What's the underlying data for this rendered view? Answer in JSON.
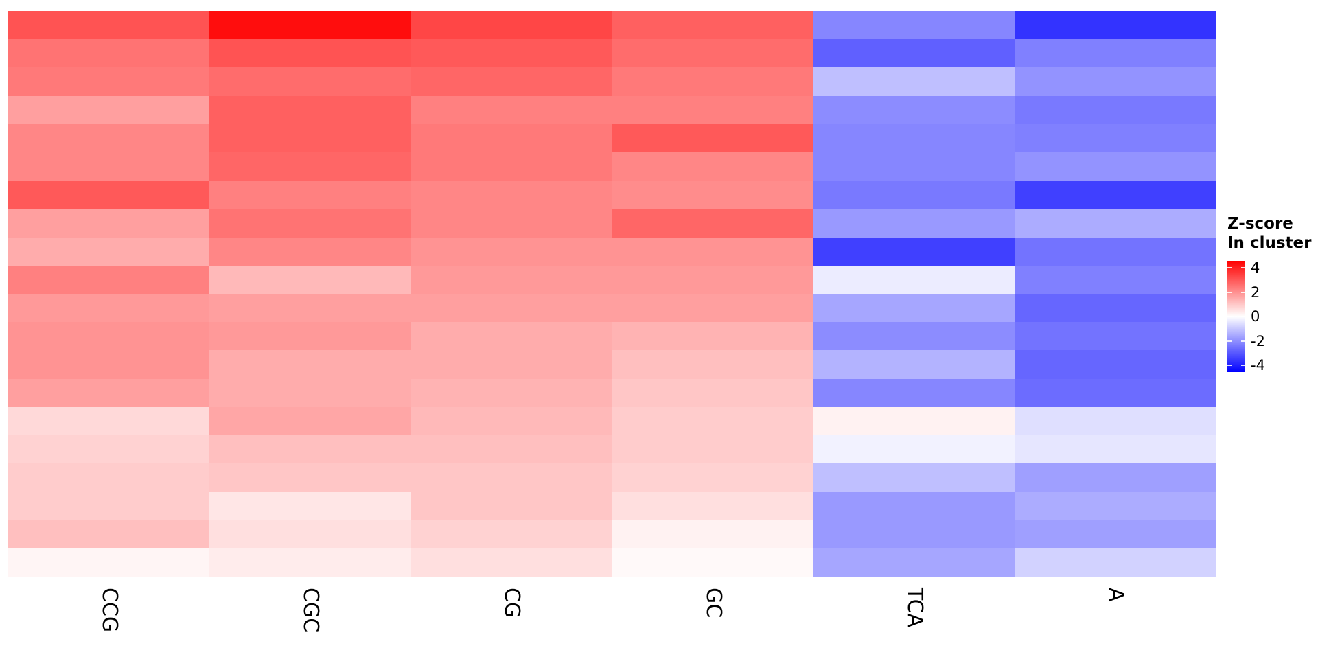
{
  "chart_data": {
    "type": "heatmap",
    "title": "",
    "columns": [
      "CCG",
      "CGC",
      "CG",
      "GC",
      "TCA",
      "A"
    ],
    "n_rows": 20,
    "zlim": [
      -4,
      4
    ],
    "colormap": {
      "negative": "#0000FF",
      "zero": "#FFFFFF",
      "positive": "#FF0000"
    },
    "values": [
      [
        2.7,
        3.8,
        2.9,
        2.5,
        -1.9,
        -3.2
      ],
      [
        2.2,
        2.7,
        2.6,
        2.3,
        -2.5,
        -2.0
      ],
      [
        2.1,
        2.3,
        2.4,
        2.1,
        -1.0,
        -1.7
      ],
      [
        1.5,
        2.5,
        2.0,
        2.0,
        -1.8,
        -2.1
      ],
      [
        1.9,
        2.5,
        2.1,
        2.6,
        -1.9,
        -2.0
      ],
      [
        1.9,
        2.4,
        2.1,
        1.9,
        -1.9,
        -1.7
      ],
      [
        2.6,
        2.0,
        1.9,
        1.8,
        -2.1,
        -3.0
      ],
      [
        1.5,
        2.2,
        1.9,
        2.4,
        -1.6,
        -1.3
      ],
      [
        1.3,
        1.9,
        1.7,
        1.7,
        -3.0,
        -2.2
      ],
      [
        2.0,
        1.1,
        1.6,
        1.6,
        -0.3,
        -2.0
      ],
      [
        1.6,
        1.5,
        1.5,
        1.5,
        -1.4,
        -2.4
      ],
      [
        1.7,
        1.6,
        1.3,
        1.2,
        -1.8,
        -2.2
      ],
      [
        1.7,
        1.3,
        1.3,
        1.0,
        -1.2,
        -2.4
      ],
      [
        1.5,
        1.3,
        1.2,
        0.9,
        -1.9,
        -2.3
      ],
      [
        0.6,
        1.4,
        1.1,
        0.8,
        0.2,
        -0.5
      ],
      [
        0.7,
        1.0,
        1.0,
        0.8,
        -0.2,
        -0.4
      ],
      [
        0.8,
        0.9,
        0.9,
        0.7,
        -1.0,
        -1.5
      ],
      [
        0.8,
        0.4,
        0.9,
        0.5,
        -1.6,
        -1.3
      ],
      [
        1.0,
        0.5,
        0.7,
        0.2,
        -1.6,
        -1.5
      ],
      [
        0.15,
        0.3,
        0.5,
        0.1,
        -1.4,
        -0.7
      ]
    ],
    "legend": {
      "title_lines": [
        "Z-score",
        "In cluster"
      ],
      "ticks": [
        4,
        2,
        0,
        -2,
        -4
      ],
      "position": "right"
    }
  }
}
